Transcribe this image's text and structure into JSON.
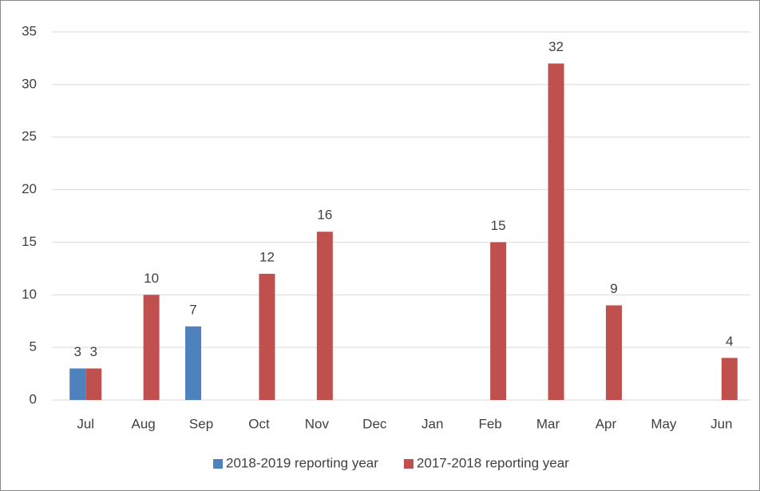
{
  "chart_data": {
    "type": "bar",
    "categories": [
      "Jul",
      "Aug",
      "Sep",
      "Oct",
      "Nov",
      "Dec",
      "Jan",
      "Feb",
      "Mar",
      "Apr",
      "May",
      "Jun"
    ],
    "series": [
      {
        "name": "2018-2019 reporting year",
        "color": "#4f81bd",
        "values": [
          3,
          null,
          7,
          null,
          null,
          null,
          null,
          null,
          null,
          null,
          null,
          null
        ]
      },
      {
        "name": "2017-2018 reporting year",
        "color": "#c0504d",
        "values": [
          3,
          10,
          null,
          12,
          16,
          null,
          null,
          15,
          32,
          9,
          null,
          4
        ]
      }
    ],
    "ylim": [
      0,
      35
    ],
    "yticks": [
      0,
      5,
      10,
      15,
      20,
      25,
      30,
      35
    ],
    "grid": true,
    "legend": "bottom"
  }
}
